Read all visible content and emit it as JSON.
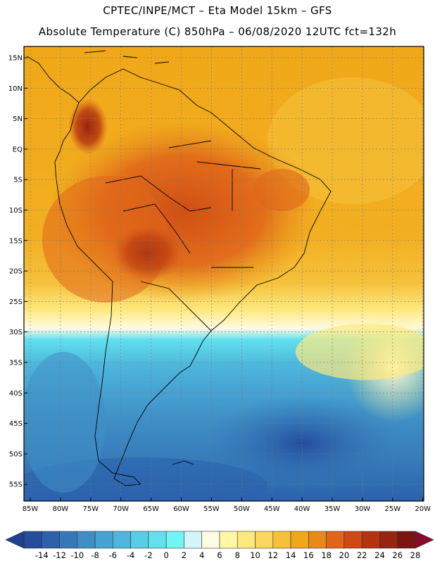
{
  "header": {
    "line1": "CPTEC/INPE/MCT –  Eta Model 15km – GFS",
    "line2": "Absolute Temperature (C) 850hPa – 06/08/2020 12UTC fct=132h"
  },
  "axes": {
    "lat_labels": [
      "15N",
      "10N",
      "5N",
      "EQ",
      "5S",
      "10S",
      "15S",
      "20S",
      "25S",
      "30S",
      "35S",
      "40S",
      "45S",
      "50S",
      "55S"
    ],
    "lon_labels": [
      "85W",
      "80W",
      "75W",
      "70W",
      "65W",
      "60W",
      "55W",
      "50W",
      "45W",
      "40W",
      "35W",
      "30W",
      "25W",
      "20W"
    ]
  },
  "colorbar": {
    "ticks": [
      "-14",
      "-12",
      "-10",
      "-8",
      "-6",
      "-4",
      "-2",
      "0",
      "2",
      "4",
      "6",
      "8",
      "10",
      "12",
      "14",
      "16",
      "18",
      "20",
      "22",
      "24",
      "26",
      "28"
    ],
    "colors": [
      "#1f3f90",
      "#244d9c",
      "#2b62ab",
      "#3579b9",
      "#3f8fc6",
      "#47a3d1",
      "#4eb6dc",
      "#58cde6",
      "#62e0ee",
      "#72f4f4",
      "#d4f6fb",
      "#fffbe4",
      "#fff7a6",
      "#fde97f",
      "#fbd75f",
      "#f5c13b",
      "#f0a818",
      "#e88a1a",
      "#e0661a",
      "#cf4a14",
      "#b5330f",
      "#962410",
      "#7a1612",
      "#8a0a2a"
    ]
  }
}
